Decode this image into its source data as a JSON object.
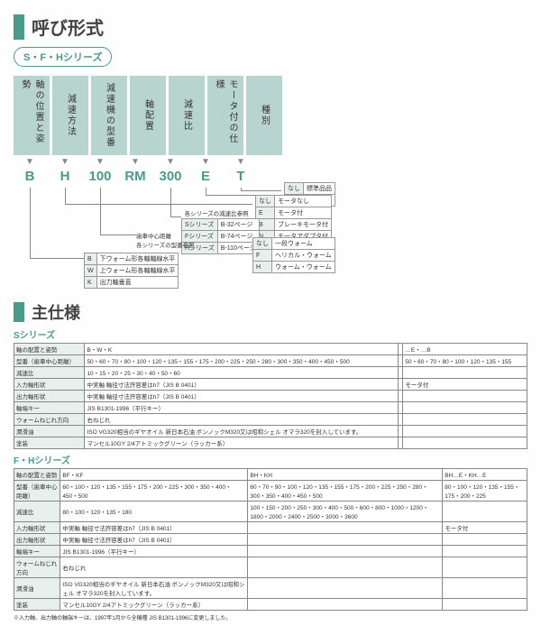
{
  "title1": "呼び形式",
  "seriesPill": "S・F・Hシリーズ",
  "headers": [
    "軸の位置と姿勢",
    "減速方法",
    "減速機の型番",
    "軸配置",
    "減速比",
    "モータ付の仕様",
    "種別"
  ],
  "codes": [
    "B",
    "H",
    "100",
    "RM",
    "300",
    "E",
    "T"
  ],
  "t7": {
    "rows": [
      [
        "なし",
        "標準品品"
      ],
      [
        "T",
        "特殊品"
      ]
    ]
  },
  "t6": {
    "rows": [
      [
        "なし",
        "モータなし"
      ],
      [
        "E",
        "モータ付"
      ],
      [
        "B",
        "ブレーキモータ付"
      ],
      [
        "N",
        "モータアダプタ付"
      ]
    ]
  },
  "t2b": {
    "rows": [
      [
        "なし",
        "一段ウォーム"
      ],
      [
        "F",
        "ヘリカル・ウォーム"
      ],
      [
        "H",
        "ウォーム・ウォーム"
      ]
    ]
  },
  "t5": {
    "caption": "各シリーズの減速比参照",
    "rows": [
      [
        "Sシリーズ",
        "B-32ページ"
      ],
      [
        "Fシリーズ",
        "B-74ページ"
      ],
      [
        "Hシリーズ",
        "B-110ページ"
      ]
    ]
  },
  "t3": {
    "caption": "歯車中心距離\n各シリーズの型番参照"
  },
  "t1": {
    "rows": [
      [
        "B",
        "下ウォーム形各軸軸線水平"
      ],
      [
        "W",
        "上ウォーム形各軸軸線水平"
      ],
      [
        "K",
        "出力軸垂直"
      ]
    ]
  },
  "title2": "主仕様",
  "subS": "Sシリーズ",
  "tableS": {
    "rows": [
      [
        "軸の配置と姿勢",
        "B・W・K",
        "",
        "…E・…B"
      ],
      [
        "型番（歯車中心距離）",
        "50・60・70・80・100・120・135・155・175・200・225・250・280・300・350・400・450・500",
        "",
        "50・60・70・80・100・120・135・155"
      ],
      [
        "減速比",
        "10・15・20・25・30・40・50・60",
        "",
        ""
      ],
      [
        "入力軸形状",
        "中実軸 軸径寸法許容差はh7（JIS B 0401）",
        "",
        "モータ付"
      ],
      [
        "出力軸形状",
        "中実軸 軸径寸法許容差はh7（JIS B 0401）",
        "",
        ""
      ],
      [
        "軸端キー",
        "JIS B1301-1996（平行キー）",
        "",
        ""
      ],
      [
        "ウォームねじれ方向",
        "右ねじれ",
        "",
        ""
      ],
      [
        "潤滑油",
        "ISO VG320相当のギヤオイル\n新日本石油 ボンノックM320又は昭和シェル オマラ320を封入しています。",
        "",
        ""
      ],
      [
        "塗装",
        "マンセル10GY 2/4アトミックグリーン（ラッカー系）",
        "",
        ""
      ]
    ]
  },
  "subFH": "F・Hシリーズ",
  "tableFH": {
    "rows": [
      [
        "軸の配置と姿勢",
        "BF・KF",
        "BH・KH",
        "BH…E・KH…E"
      ],
      [
        "型番（歯車中心距離）",
        "60・100・120・135・155・175・200・225・300・350・400・450・500",
        "60・70・90・100・120・135・155・175・200・225・250・280・300・350・400・450・500",
        "80・100・120・135・155・175・200・225"
      ],
      [
        "減速比",
        "80・100・120・135・180",
        "100・150・200・250・300・400・500・600・800・1000・1200・1800・2000・2400・2500・3000・3600",
        ""
      ],
      [
        "入力軸形状",
        "中実軸 軸径寸法許容差はh7（JIS B 0401）",
        "",
        "モータ付"
      ],
      [
        "出力軸形状",
        "中実軸 軸径寸法許容差はh7（JIS B 0401）",
        "",
        ""
      ],
      [
        "軸端キー",
        "JIS B1301-1996（平行キー）",
        "",
        ""
      ],
      [
        "ウォームねじれ方向",
        "右ねじれ",
        "",
        ""
      ],
      [
        "潤滑油",
        "ISO VG320相当のギヤオイル\n新日本石油 ボンノックM320又は昭和シェル オマラ320を封入しています。",
        "",
        ""
      ],
      [
        "塗装",
        "マンセル10GY 2/4アトミックグリーン（ラッカー系）",
        "",
        ""
      ]
    ]
  },
  "footnote": "※入力軸、出力軸の軸端キーは、1997年1月から全機種 JIS B1301-1996に変更しました。"
}
